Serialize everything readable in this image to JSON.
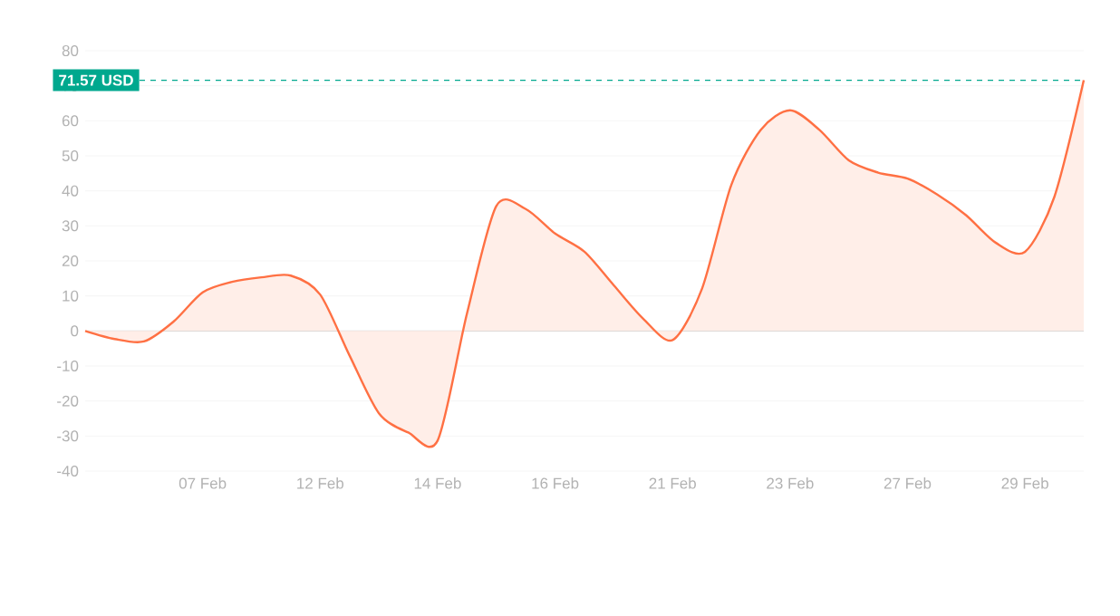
{
  "chart_data": {
    "type": "area",
    "categories": [
      null,
      null,
      null,
      null,
      "07 Feb",
      null,
      null,
      null,
      "12 Feb",
      null,
      null,
      null,
      "14 Feb",
      null,
      null,
      null,
      "16 Feb",
      null,
      null,
      null,
      "21 Feb",
      null,
      null,
      null,
      "23 Feb",
      null,
      null,
      null,
      "27 Feb",
      null,
      null,
      null,
      "29 Feb",
      null,
      null
    ],
    "series": [
      {
        "color": "#ff7043",
        "values": [
          0,
          -2.3,
          -3,
          2.6,
          11,
          14,
          15.3,
          15.8,
          10.4,
          -7,
          -23.5,
          -29,
          -31.3,
          5,
          35.7,
          34.8,
          27.8,
          22.6,
          13,
          3.5,
          -2.6,
          12,
          41.7,
          57.4,
          63,
          57.4,
          48.7,
          45.2,
          43.5,
          39,
          33,
          25.2,
          22.6,
          38.3,
          71.57
        ]
      }
    ],
    "ylim": [
      -40,
      80
    ],
    "yticks": [
      -40,
      -30,
      -20,
      -10,
      0,
      10,
      20,
      30,
      40,
      50,
      60,
      70,
      80
    ],
    "grid": "y",
    "ref_lines": [
      {
        "axis": "y",
        "value": 71.57,
        "label": "71.57 USD",
        "color": "#00a88e",
        "line_style": "dashed"
      }
    ]
  }
}
